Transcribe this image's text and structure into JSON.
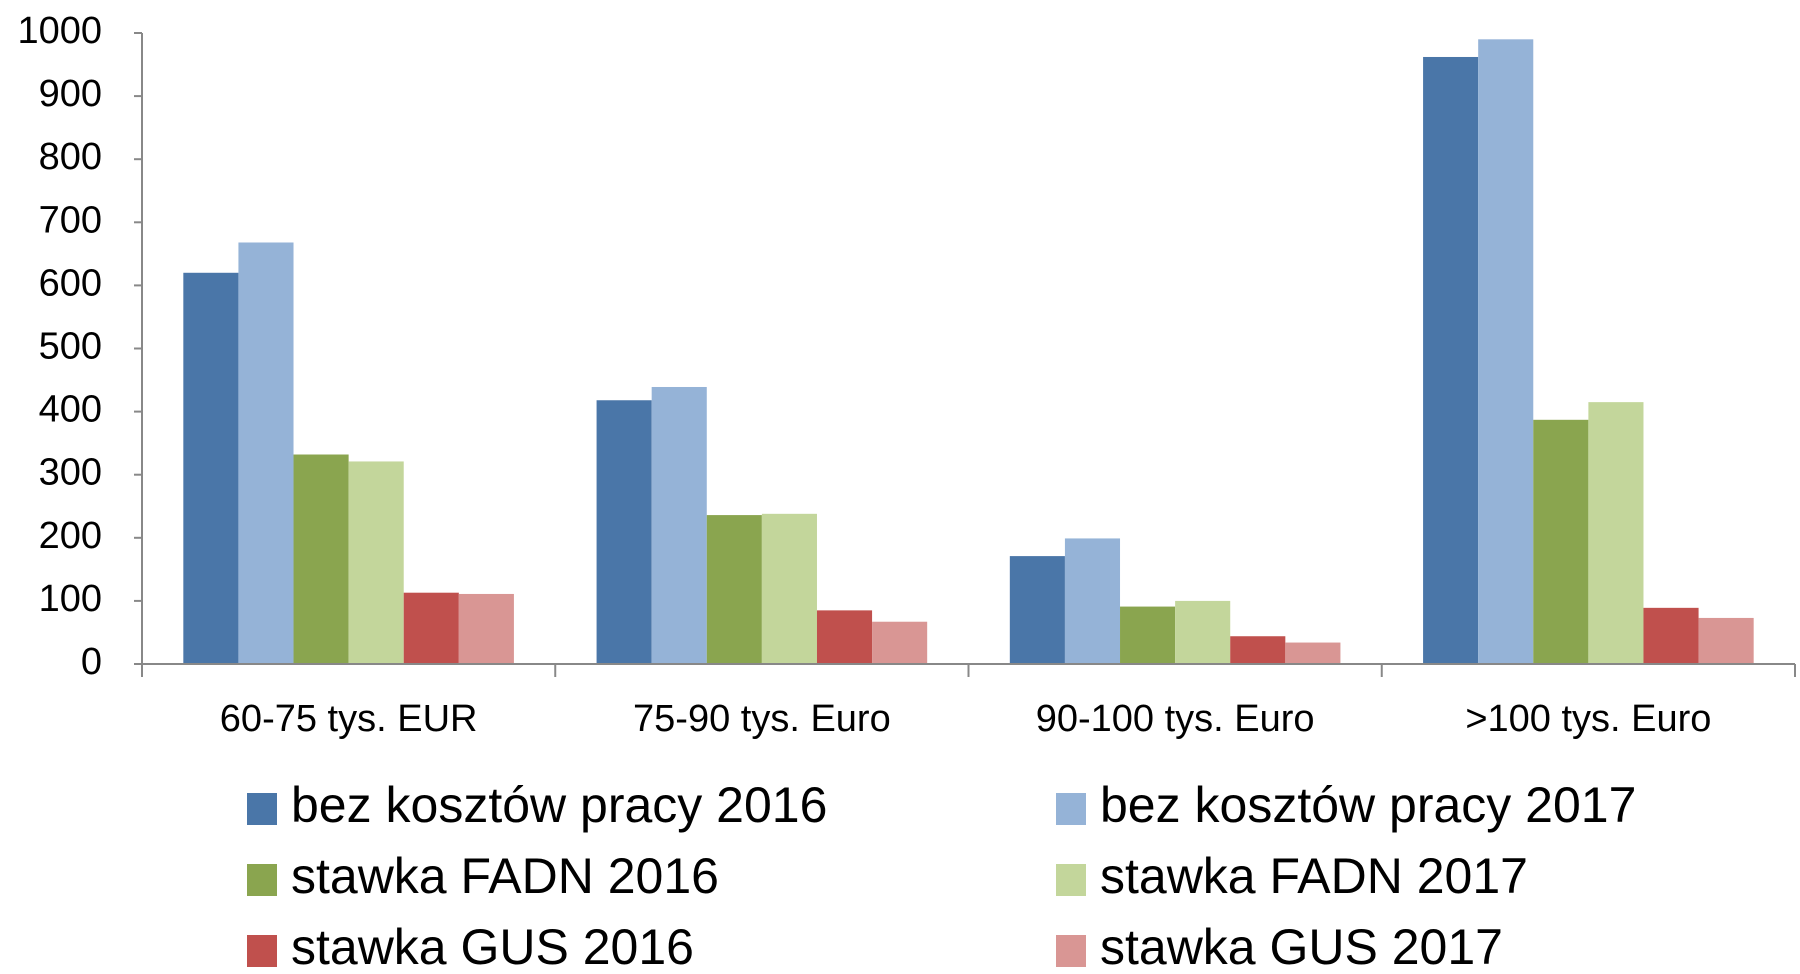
{
  "chart_data": {
    "type": "bar",
    "categories": [
      "60-75 tys. EUR",
      "75-90 tys. Euro",
      "90-100 tys. Euro",
      ">100 tys. Euro"
    ],
    "series": [
      {
        "name": "bez kosztów pracy 2016",
        "color": "#4a76a8",
        "values": [
          620,
          418,
          171,
          962
        ]
      },
      {
        "name": "bez kosztów pracy 2017",
        "color": "#95b3d7",
        "values": [
          668,
          439,
          199,
          990
        ]
      },
      {
        "name": "stawka FADN 2016",
        "color": "#8aa54f",
        "values": [
          332,
          236,
          91,
          387
        ]
      },
      {
        "name": "stawka FADN 2017",
        "color": "#c3d69b",
        "values": [
          321,
          238,
          100,
          415
        ]
      },
      {
        "name": "stawka GUS 2016",
        "color": "#c0504d",
        "values": [
          113,
          85,
          44,
          89
        ]
      },
      {
        "name": "stawka GUS 2017",
        "color": "#d99694",
        "values": [
          111,
          67,
          34,
          73
        ]
      }
    ],
    "ylim": [
      0,
      1000
    ],
    "yticks": [
      0,
      100,
      200,
      300,
      400,
      500,
      600,
      700,
      800,
      900,
      1000
    ],
    "grid": false
  }
}
